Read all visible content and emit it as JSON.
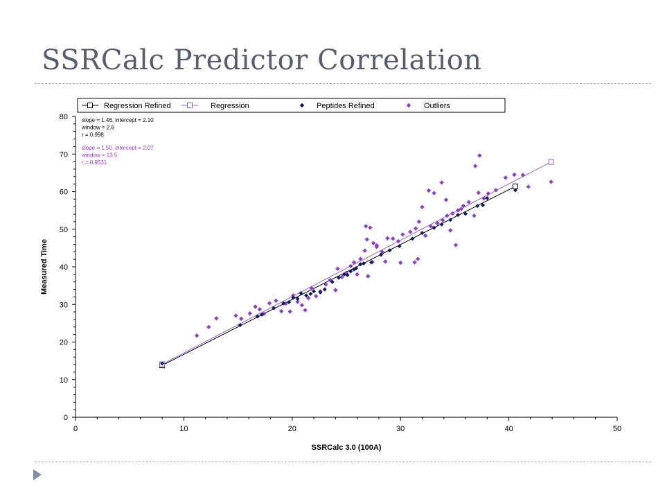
{
  "slide": {
    "title": "SSRCalc Predictor Correlation"
  },
  "colors": {
    "title": "#585c6d",
    "rule": "#9bb2c6",
    "bullet": "#7f8fa9",
    "regression_refined": "#000000",
    "regression": "#9966cc",
    "peptides_refined": "#0a1a5c",
    "outliers": "#8a3fd1",
    "stats_regression": "#9933cc"
  },
  "chart_data": {
    "type": "scatter",
    "xlabel": "SSRCalc 3.0 (100A)",
    "ylabel": "Measured Time",
    "xlim": [
      0,
      50
    ],
    "ylim": [
      0,
      80
    ],
    "x_ticks": [
      0,
      10,
      20,
      30,
      40,
      50
    ],
    "y_ticks": [
      0,
      10,
      20,
      30,
      40,
      50,
      60,
      70,
      80
    ],
    "grid": false,
    "legend_position": "top",
    "legend": [
      {
        "label": "Regression Refined",
        "marker": "square-line"
      },
      {
        "label": "Regression",
        "marker": "square-line"
      },
      {
        "label": "Peptides Refined",
        "marker": "diamond"
      },
      {
        "label": "Outliers",
        "marker": "diamond"
      }
    ],
    "stats": {
      "refined": [
        "slope = 1.46, intercept = 2.10",
        "window = 2.6",
        "r = 0.998"
      ],
      "regression": [
        "slope = 1.50, intercept = 2.07",
        "window = 13.5",
        "r = 0.9531"
      ]
    },
    "series": [
      {
        "name": "Regression Refined",
        "kind": "line",
        "x": [
          8.0,
          40.6
        ],
        "y": [
          13.8,
          61.4
        ]
      },
      {
        "name": "Regression",
        "kind": "line",
        "x": [
          8.0,
          43.9
        ],
        "y": [
          14.1,
          67.9
        ]
      },
      {
        "name": "Peptides Refined",
        "kind": "scatter",
        "x": [
          8.0,
          15.2,
          16.8,
          17.2,
          18.3,
          19.2,
          19.7,
          20.1,
          20.5,
          20.8,
          21.3,
          21.7,
          22.0,
          22.6,
          23.0,
          23.7,
          24.3,
          24.8,
          25.1,
          25.4,
          25.7,
          25.9,
          26.3,
          26.6,
          27.3,
          28.2,
          29.0,
          29.9,
          31.1,
          32.0,
          33.1,
          33.8,
          34.6,
          35.3,
          36.0,
          37.1,
          37.6,
          38.0,
          40.6
        ],
        "y": [
          14.3,
          24.5,
          26.8,
          27.3,
          29.0,
          30.3,
          30.6,
          31.8,
          31.5,
          33.0,
          32.4,
          32.8,
          33.5,
          33.2,
          34.0,
          36.0,
          37.1,
          38.0,
          37.8,
          38.8,
          39.3,
          39.6,
          40.7,
          40.9,
          41.2,
          43.2,
          44.4,
          45.5,
          47.5,
          49.0,
          50.4,
          51.3,
          52.5,
          53.8,
          54.1,
          56.2,
          56.4,
          58.3,
          60.4
        ]
      },
      {
        "name": "Outliers",
        "kind": "scatter",
        "x": [
          11.2,
          12.3,
          13.0,
          14.8,
          15.3,
          16.1,
          16.6,
          17.0,
          17.4,
          17.9,
          18.5,
          19.0,
          19.4,
          19.8,
          20.1,
          20.5,
          20.9,
          21.2,
          21.5,
          21.8,
          22.2,
          22.6,
          23.1,
          23.5,
          24.0,
          24.2,
          24.6,
          25.0,
          25.4,
          25.7,
          26.0,
          26.3,
          26.7,
          27.0,
          27.4,
          27.8,
          28.3,
          28.8,
          29.3,
          29.8,
          30.2,
          30.9,
          31.4,
          31.7,
          32.3,
          32.8,
          33.4,
          33.9,
          34.3,
          34.8,
          35.3,
          35.8,
          36.3,
          36.8,
          37.2,
          37.7,
          38.1,
          38.8,
          39.7,
          40.5,
          41.3,
          41.8,
          43.9,
          26.8,
          26.9,
          27.2,
          27.5,
          27.8,
          28.6,
          30.0,
          31.3,
          31.6,
          32.0,
          32.6,
          33.1,
          33.8,
          34.2,
          34.6,
          35.1,
          35.6,
          36.9,
          37.3
        ],
        "y": [
          21.7,
          24.0,
          26.3,
          27.0,
          26.2,
          27.6,
          29.4,
          28.7,
          27.5,
          30.3,
          31.0,
          28.2,
          30.2,
          28.1,
          32.4,
          30.7,
          29.8,
          28.5,
          31.7,
          34.3,
          32.2,
          33.5,
          35.3,
          36.5,
          33.8,
          39.5,
          37.3,
          38.4,
          40.2,
          41.2,
          38.0,
          42.1,
          44.3,
          37.5,
          41.3,
          45.7,
          44.0,
          47.6,
          47.5,
          46.8,
          48.6,
          49.3,
          50.2,
          52.0,
          48.3,
          50.8,
          51.6,
          52.4,
          53.6,
          54.2,
          55.0,
          56.2,
          57.2,
          53.6,
          59.7,
          58.2,
          59.5,
          60.4,
          63.7,
          64.5,
          64.4,
          61.3,
          62.6,
          50.8,
          47.3,
          50.4,
          46.3,
          45.3,
          41.4,
          41.1,
          41.2,
          42.1,
          55.9,
          60.3,
          59.6,
          62.4,
          57.8,
          49.7,
          45.8,
          55.4,
          66.8,
          69.6
        ]
      }
    ]
  }
}
